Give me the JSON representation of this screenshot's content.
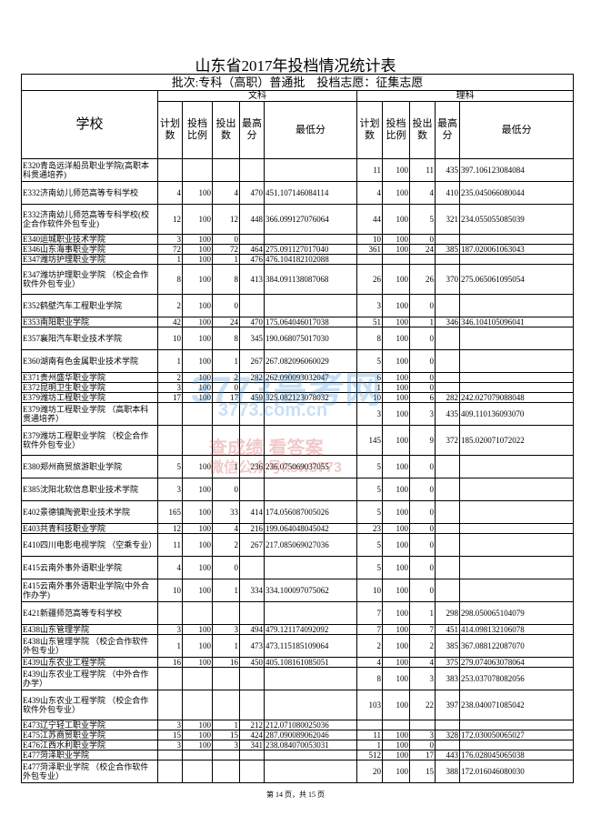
{
  "header": {
    "title": "山东省2017年投档情况统计表",
    "subtitle": "批次:专科（高职）普通批　投档志愿：征集志愿",
    "school": "学校",
    "groups": [
      "文科",
      "理科"
    ],
    "columns": [
      "计划数",
      "投档比例",
      "投出数",
      "最高分",
      "最低分"
    ]
  },
  "watermark": [
    "3773高考网",
    "3773.com.cn",
    "查成绩 看答案",
    "微信公众号ksw3773"
  ],
  "table": {
    "rows": [
      [
        "E320青岛远洋船员职业学院(高职本科贯通培养)",
        [
          null,
          null,
          null,
          null,
          null
        ],
        [
          11,
          100,
          11,
          435,
          "397.106123084084"
        ]
      ],
      [
        "E332济南幼儿师范高等专科学校",
        [
          4,
          100,
          4,
          470,
          "451.107146084114"
        ],
        [
          4,
          100,
          4,
          410,
          "235.045066080044"
        ]
      ],
      [
        "E332济南幼儿师范高等专科学校(校企合作软件外包专业)",
        [
          12,
          100,
          12,
          448,
          "366.099127076064"
        ],
        [
          44,
          100,
          5,
          321,
          "234.055055085039"
        ]
      ],
      [
        "E340运城职业技术学院",
        [
          3,
          100,
          0,
          null,
          null
        ],
        [
          10,
          100,
          0,
          null,
          null
        ]
      ],
      [
        "E346山东海事职业学院",
        [
          72,
          100,
          72,
          464,
          "275.091127017040"
        ],
        [
          361,
          100,
          24,
          385,
          "187.020061063043"
        ]
      ],
      [
        "E347潍坊护理职业学院",
        [
          1,
          100,
          1,
          476,
          "476.104182102088"
        ],
        [
          null,
          null,
          null,
          null,
          null
        ]
      ],
      [
        "E347潍坊护理职业学院 （校企合作软件外包专业）",
        [
          8,
          100,
          8,
          413,
          "384.091138087068"
        ],
        [
          26,
          100,
          26,
          370,
          "275.065061095054"
        ]
      ],
      [
        "E352鹤壁汽车工程职业学院",
        [
          2,
          100,
          0,
          null,
          null
        ],
        [
          3,
          100,
          0,
          null,
          null
        ]
      ],
      [
        "E353南阳职业学院",
        [
          42,
          100,
          24,
          470,
          "175.064046017038"
        ],
        [
          51,
          100,
          1,
          346,
          "346.104105096041"
        ]
      ],
      [
        "E357襄阳汽车职业技术学院",
        [
          10,
          100,
          8,
          345,
          "190.068075017030"
        ],
        [
          8,
          100,
          0,
          null,
          null
        ]
      ],
      [
        "E360湖南有色金属职业技术学院",
        [
          1,
          100,
          1,
          267,
          "267.082096060029"
        ],
        [
          5,
          100,
          0,
          null,
          null
        ]
      ],
      [
        "E371贵州盛华职业学院",
        [
          2,
          100,
          2,
          282,
          "262.090093032047"
        ],
        [
          6,
          100,
          0,
          null,
          null
        ]
      ],
      [
        "E372昆明卫生职业学院",
        [
          3,
          100,
          0,
          null,
          null
        ],
        [
          1,
          100,
          0,
          null,
          null
        ]
      ],
      [
        "E379潍坊工程职业学院",
        [
          17,
          100,
          17,
          459,
          "325.082123078032"
        ],
        [
          10,
          100,
          6,
          282,
          "242.027079088048"
        ]
      ],
      [
        "E379潍坊工程职业学院 （高职本科贯通培养）",
        [
          null,
          null,
          null,
          null,
          null
        ],
        [
          3,
          100,
          3,
          435,
          "409.110136093070"
        ]
      ],
      [
        "E379潍坊工程职业学院 （校企合作软件外包专业）",
        [
          null,
          null,
          null,
          null,
          null
        ],
        [
          145,
          100,
          9,
          372,
          "185.020071072022"
        ]
      ],
      [
        "E380郑州商贸旅游职业学院",
        [
          5,
          100,
          1,
          236,
          "236.075069037055"
        ],
        [
          5,
          100,
          0,
          null,
          null
        ]
      ],
      [
        "E385沈阳北软信息职业技术学院",
        [
          3,
          100,
          0,
          null,
          null
        ],
        [
          5,
          100,
          0,
          null,
          null
        ]
      ],
      [
        "E402景德镇陶瓷职业技术学院",
        [
          165,
          100,
          33,
          414,
          "174.056087005026"
        ],
        [
          5,
          100,
          0,
          null,
          null
        ]
      ],
      [
        "E403共青科技职业学院",
        [
          12,
          100,
          4,
          216,
          "199.064048045042"
        ],
        [
          23,
          100,
          0,
          null,
          null
        ]
      ],
      [
        "E410四川电影电视学院 （空乘专业）",
        [
          11,
          100,
          2,
          267,
          "217.085069027036"
        ],
        [
          5,
          100,
          0,
          null,
          null
        ]
      ],
      [
        "E415云南外事外语职业学院",
        [
          4,
          100,
          0,
          null,
          null
        ],
        [
          5,
          100,
          0,
          null,
          null
        ]
      ],
      [
        "E415云南外事外语职业学院(中外合作办学)",
        [
          10,
          100,
          1,
          334,
          "334.100097075062"
        ],
        [
          10,
          100,
          0,
          null,
          null
        ]
      ],
      [
        "E421新疆师范高等专科学校",
        [
          null,
          null,
          null,
          null,
          null
        ],
        [
          7,
          100,
          1,
          298,
          "298.050065104079"
        ]
      ],
      [
        "E438山东管理学院",
        [
          3,
          100,
          3,
          494,
          "479.121174092092"
        ],
        [
          7,
          100,
          7,
          451,
          "414.098132106078"
        ]
      ],
      [
        "E438山东管理学院 （校企合作软件外包专业）",
        [
          1,
          100,
          1,
          473,
          "473.115185109064"
        ],
        [
          2,
          100,
          2,
          385,
          "367.088122087070"
        ]
      ],
      [
        "E439山东农业工程学院",
        [
          16,
          100,
          16,
          450,
          "405.108161085051"
        ],
        [
          4,
          100,
          4,
          375,
          "279.074063078064"
        ]
      ],
      [
        "E439山东农业工程学院 （中外合作办学）",
        [
          null,
          null,
          null,
          null,
          null
        ],
        [
          8,
          100,
          3,
          383,
          "253.037078082056"
        ]
      ],
      [
        "E439山东农业工程学院 （校企合作软件外包专业）",
        [
          null,
          null,
          null,
          null,
          null
        ],
        [
          103,
          100,
          22,
          397,
          "238.040071085042"
        ]
      ],
      [
        "E473辽宁轻工职业学院",
        [
          3,
          100,
          1,
          212,
          "212.071080025036"
        ],
        [
          null,
          null,
          null,
          null,
          null
        ]
      ],
      [
        "E475江苏商贸职业学院",
        [
          15,
          100,
          15,
          424,
          "287.090089062046"
        ],
        [
          11,
          100,
          3,
          328,
          "172.030050065027"
        ]
      ],
      [
        "E476江西水利职业学院",
        [
          3,
          100,
          3,
          341,
          "238.084070053031"
        ],
        [
          1,
          100,
          0,
          null,
          null
        ]
      ],
      [
        "E477菏泽职业学院",
        [
          null,
          null,
          null,
          null,
          null
        ],
        [
          512,
          100,
          17,
          443,
          "176.028045065038"
        ]
      ],
      [
        "E477菏泽职业学院 （校企合作软件外包专业）",
        [
          null,
          null,
          null,
          null,
          null
        ],
        [
          20,
          100,
          15,
          388,
          "172.016046080030"
        ]
      ]
    ]
  },
  "footer": {
    "page": "第 14 页，共 15 页"
  }
}
